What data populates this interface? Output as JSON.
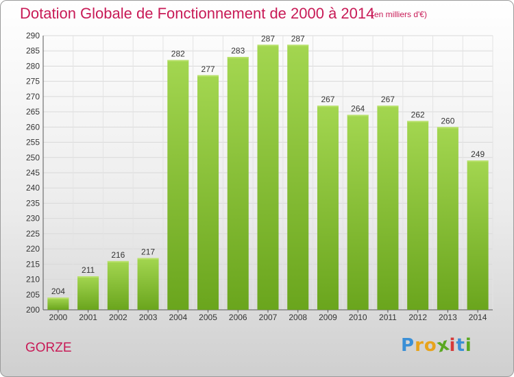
{
  "title": "Dotation Globale de Fonctionnement de 2000 à 2014",
  "subtitle": "(en milliers d'€)",
  "commune": "GORZE",
  "logo": {
    "letters": [
      "P",
      "r",
      "o",
      "x",
      "i",
      "t",
      "i"
    ],
    "colors": [
      "#3a8fd6",
      "#e8a31b",
      "#e8a31b",
      "#5aa820",
      "#d63a3a",
      "#3a8fd6",
      "#5aa820"
    ]
  },
  "colors": {
    "bar": "#7fbf2a",
    "bar_light": "#a2d64e",
    "title": "#c81a56"
  },
  "chart_data": {
    "type": "bar",
    "title": "Dotation Globale de Fonctionnement de 2000 à 2014",
    "xlabel": "",
    "ylabel": "",
    "categories": [
      "2000",
      "2001",
      "2002",
      "2003",
      "2004",
      "2005",
      "2006",
      "2007",
      "2008",
      "2009",
      "2010",
      "2011",
      "2012",
      "2013",
      "2014"
    ],
    "values": [
      204,
      211,
      216,
      217,
      282,
      277,
      283,
      287,
      287,
      267,
      264,
      267,
      262,
      260,
      249
    ],
    "ylim": [
      200,
      290
    ],
    "yticks": [
      200,
      205,
      210,
      215,
      220,
      225,
      230,
      235,
      240,
      245,
      250,
      255,
      260,
      265,
      270,
      275,
      280,
      285,
      290
    ],
    "grid": true
  }
}
